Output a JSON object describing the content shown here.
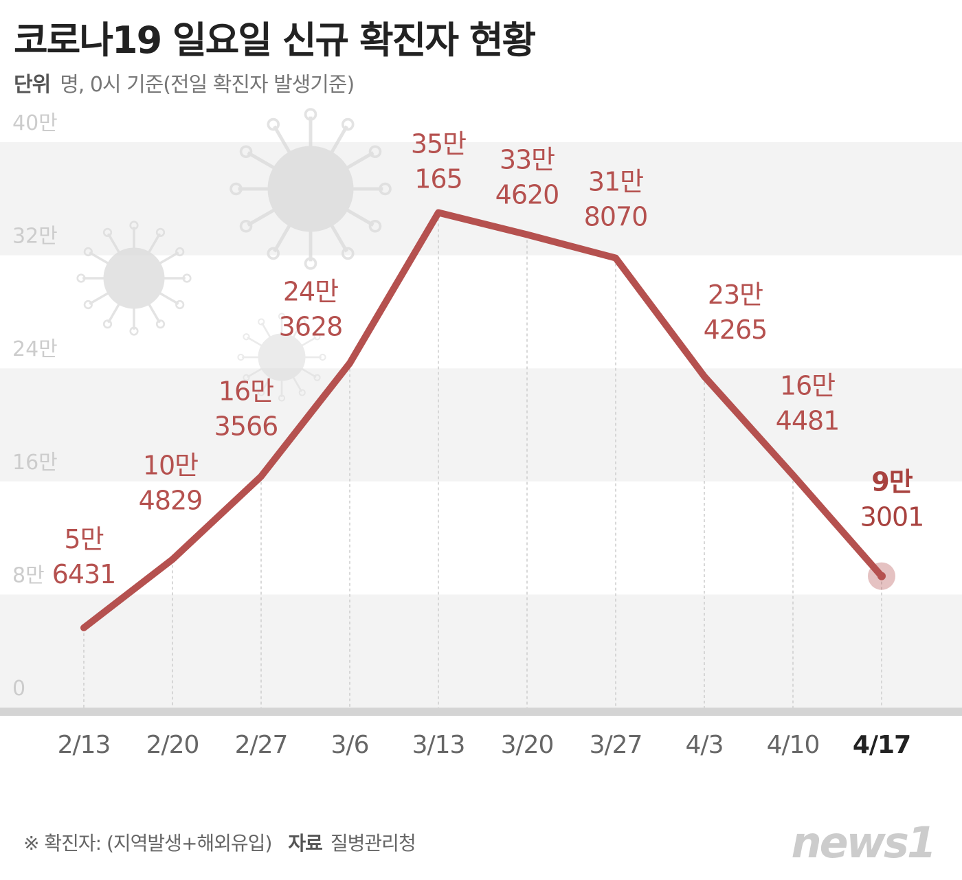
{
  "title": "코로나19 일요일 신규 확진자 현황",
  "unit_label": "단위",
  "unit_text": "명, 0시 기준(전일 확진자 발생기준)",
  "footer": {
    "note": "※ 확진자: (지역발생+해외유입)",
    "source_label": "자료",
    "source": "질병관리청"
  },
  "logo": "news1",
  "colors": {
    "line": "#b5514f",
    "label": "#b5514f",
    "highlight": "#a8423f",
    "band": "#f3f3f3"
  },
  "chart_data": {
    "type": "line",
    "title": "코로나19 일요일 신규 확진자 현황",
    "xlabel": "",
    "ylabel": "명",
    "ylim": [
      0,
      400000
    ],
    "y_ticks": [
      0,
      80000,
      160000,
      240000,
      320000,
      400000
    ],
    "y_tick_labels": [
      "0",
      "8만",
      "16만",
      "24만",
      "32만",
      "40만"
    ],
    "categories": [
      "2/13",
      "2/20",
      "2/27",
      "3/6",
      "3/13",
      "3/20",
      "3/27",
      "4/3",
      "4/10",
      "4/17"
    ],
    "values": [
      56431,
      104829,
      163566,
      243628,
      350165,
      334620,
      318070,
      234265,
      164481,
      93001
    ],
    "data_labels": [
      [
        "5만",
        "6431"
      ],
      [
        "10만",
        "4829"
      ],
      [
        "16만",
        "3566"
      ],
      [
        "24만",
        "3628"
      ],
      [
        "35만",
        "165"
      ],
      [
        "33만",
        "4620"
      ],
      [
        "31만",
        "8070"
      ],
      [
        "23만",
        "4265"
      ],
      [
        "16만",
        "4481"
      ],
      [
        "9만",
        "3001"
      ]
    ],
    "highlight_index": 9,
    "grid": "bands"
  }
}
